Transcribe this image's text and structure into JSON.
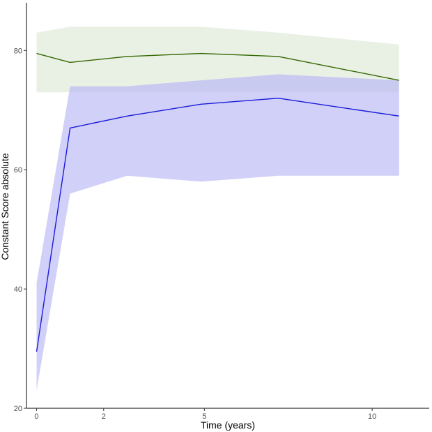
{
  "chart_data": {
    "type": "line",
    "title": "",
    "xlabel": "Time (years)",
    "ylabel": "Constant Score absolute",
    "xlim": [
      -0.3,
      11.7
    ],
    "ylim": [
      20,
      88
    ],
    "xticks": [
      0,
      2,
      5,
      10
    ],
    "yticks": [
      20,
      40,
      60,
      80
    ],
    "grid": false,
    "legend": "none",
    "series": [
      {
        "color": "#336600",
        "band_color": "#dce9d5",
        "x": [
          0,
          1,
          2.7,
          4.9,
          7.2,
          10.8
        ],
        "values": [
          79.5,
          78,
          79,
          79.5,
          79,
          75
        ],
        "lower": [
          73,
          73,
          73,
          73,
          73,
          73
        ],
        "upper": [
          83,
          84,
          84,
          84,
          83,
          81
        ]
      },
      {
        "color": "#1a1ad9",
        "band_color": "#b3b3f5",
        "x": [
          0,
          1,
          2.7,
          4.9,
          7.2,
          10.8
        ],
        "values": [
          29.5,
          67,
          69,
          71,
          72,
          69
        ],
        "lower": [
          23,
          56,
          59,
          58,
          59,
          59
        ],
        "upper": [
          41,
          74,
          74,
          75,
          76,
          75
        ]
      }
    ]
  }
}
